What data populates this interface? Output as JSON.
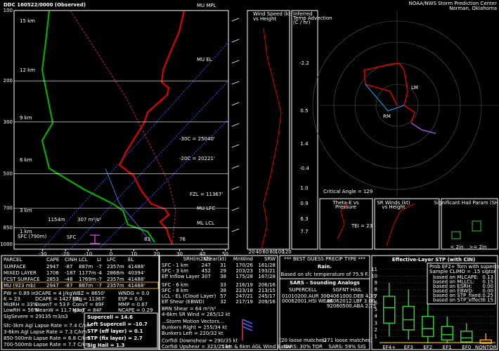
{
  "header": {
    "title": "DDC  160522/0000  (Observed)",
    "center": "NOAA/NWS Storm Prediction Center",
    "location": "Norman, Oklahoma"
  },
  "skewt": {
    "plim": [
      100,
      1050
    ],
    "tlim": [
      -42.5,
      51.4
    ],
    "pressure_ticks": [
      100,
      200,
      300,
      500,
      700,
      850,
      1000
    ],
    "temp_ticks": [
      -30,
      -20,
      -10,
      0,
      10,
      20,
      30,
      40,
      50
    ],
    "height_labels": [
      "15 km",
      "12 km",
      "9 km",
      "6 km",
      "3 km",
      "1 km"
    ],
    "annotations": [
      "MU MPL",
      "MU EL",
      "-30C = 25040'",
      "-20C = 20221'",
      "FZL = 11367'",
      "MU LFC",
      "ML LCL",
      "1154m",
      "307 m²/s²",
      "SFC (790m)",
      "SFC",
      "83",
      "76"
    ]
  },
  "wind_panel": {
    "title": [
      "Wind Speed (kt)",
      "vs Height"
    ],
    "ticks": [
      20,
      40,
      60,
      80,
      100,
      120
    ]
  },
  "advection": {
    "title": [
      "Inferred",
      "Temp Advection",
      "(C / hr)"
    ],
    "values": [
      "-2.2",
      "0.5",
      "1.4",
      "-0.4",
      "1.0",
      "0.9",
      "6.3",
      "7.7"
    ]
  },
  "hodograph": {
    "critical_angle": "Critical Angle = 129",
    "labels": [
      "RM",
      "LM"
    ]
  },
  "small_panels": {
    "theta_e": [
      "Theta-E vs",
      "Pressure"
    ],
    "tei": "TEI = 23",
    "srwind": [
      "SR Winds (kt)",
      "vs Height"
    ],
    "ship": "Significant Hail Param (SHIP)",
    "ship_axis": [
      "< 2in",
      ">= 2in"
    ]
  },
  "parcel_table": {
    "headers": [
      "PARCEL",
      "CAPE",
      "CINH",
      "LCL",
      "LI",
      "LFC",
      "EL"
    ],
    "rows": [
      [
        "SURFACE",
        "2947",
        "-87",
        "887m",
        "-7",
        "2357m",
        "41488'"
      ],
      [
        "MIXED LAYER",
        "1706",
        "-187",
        "1177m",
        "-4",
        "2868m",
        "40394'"
      ],
      [
        "FCST SURFACE",
        "2853",
        "-48",
        "1769m",
        "-7",
        "2357m",
        "41488'"
      ],
      [
        "MU   (923 mb)",
        "2947",
        "-87",
        "887m",
        "-7",
        "2357m",
        "41488'"
      ]
    ]
  },
  "indices": [
    [
      "PW = 0.89 in",
      "3CAPE = 4 J/kg",
      "WBZ = 8650'",
      "WNDG = 0.0"
    ],
    [
      "K = 23",
      "DCAPE = 1427 J/kg",
      "FZL = 11367'",
      "ESP = 0.0"
    ],
    [
      "MidRH = 33%",
      "DownT = 53 F",
      "ConvT = 89F",
      "MMP = 0.67"
    ],
    [
      "LowRH = 56%",
      "MeanW = 11.7 g/kg",
      "MaxT = 84F",
      "NCAPE = 0.29"
    ]
  ],
  "sigsevere": "SigSevere = 29135 m3/s3",
  "lapse_rates": [
    "Sfc-3km Agl Lapse Rate = 7.4 C/km",
    "3-6km Agl Lapse Rate = 7.3 C/km",
    "850-500mb Lapse Rate = 6.8 C/km",
    "700-500mb Lapse Rate = 7.7 C/km"
  ],
  "composites": [
    "Supercell = 14.6",
    "Left Supercell = -10.7",
    "STP (eff layer) = 0.1",
    "STP (fix layer) = 2.7",
    "Sig Hail = 1.3"
  ],
  "kinematics": {
    "headers": [
      "SRH(m2s2)",
      "Shear(kt)",
      "MnWind",
      "SRW"
    ],
    "rows": [
      [
        "SFC - 1 km",
        "247",
        "31",
        "170/26",
        "161/28"
      ],
      [
        "SFC - 3 km",
        "452",
        "29",
        "203/23",
        "193/21"
      ],
      [
        "Eff Inflow Layer",
        "307",
        "38",
        "175/28",
        "167/28"
      ],
      [
        "SFC - 6 km",
        null,
        "33",
        "216/19",
        "206/16"
      ],
      [
        "SFC - 8 km",
        null,
        "38",
        "223/18",
        "213/15"
      ],
      [
        "LCL - EL (Cloud Layer)",
        null,
        "57",
        "247/21",
        "245/17"
      ],
      [
        "Eff Shear (EBWD)",
        null,
        "32",
        "217/19",
        "209/16"
      ]
    ],
    "extra": [
      "BRN Shear = 64 m²/s²",
      "4-6km SR Wind = 265/12 kt"
    ],
    "motion": [
      "...Storm Motion Vectors...",
      "Bunkers Right = 255/34 kt",
      "Bunkers Left = 220/32 kt",
      "Corfidi Downshear = 290/35 kt",
      "Corfidi Upshear = 323/25 kt"
    ],
    "barb_legend": "1km & 6km AGL Wind Barbs"
  },
  "precip": {
    "title": "*** BEST GUESS PRECIP TYPE ***",
    "type": "Rain.",
    "basis": "Based on sfc temperature of 75.9 F."
  },
  "sars": {
    "title": "SARS - Sounding Analogs",
    "supercell_title": "SUPERCELL",
    "hail_title": "SGFNT HAIL",
    "supercell": [
      "01010200.AUR  300",
      "00062001.HSI  WEAK"
    ],
    "hail": [
      "04061000.DEB  4.35",
      "96062012.LBF  3.00",
      "92060500.ABA  2.75"
    ],
    "supercell_matches": "(20 loose matches)",
    "hail_matches": "(271 loose matches)",
    "supercell_result": "SARS:  30% TOR",
    "hail_result": "SARS:  59% SIG"
  },
  "stp": {
    "title": "Effective-Layer STP (with CIN)",
    "prob": [
      "Prob EF2+ Torn with supercell",
      "Sample CLIMO = .15 sigtor"
    ],
    "based": [
      [
        "based on MLCAPE:",
        "0.13"
      ],
      [
        "based on MLLCL:",
        "0.15"
      ],
      [
        "based on ESRH:",
        "0.00"
      ],
      [
        "based on EBWD:",
        "0.00"
      ],
      [
        "based on STP_fixed:",
        "0.25"
      ],
      [
        "based on STP_effect:",
        "0.15"
      ]
    ],
    "ylim": [
      0,
      11.5
    ],
    "yticks": [
      1,
      2,
      3,
      4,
      5,
      6,
      7,
      8,
      9,
      10,
      11
    ],
    "categories": [
      "EF4+",
      "EF3",
      "EF2",
      "EF1",
      "EF0",
      "NONTOR"
    ],
    "boxes": [
      [
        1,
        3,
        5.3,
        7,
        9
      ],
      [
        0.5,
        2,
        3.5,
        5.5,
        8
      ],
      [
        0,
        1,
        2.2,
        4,
        6
      ],
      [
        0,
        0.5,
        1.3,
        2.5,
        4
      ],
      [
        0,
        0.2,
        0.8,
        1.8,
        3
      ],
      [
        0,
        0,
        0.1,
        0.5,
        1.5
      ]
    ],
    "value": 0.1
  }
}
